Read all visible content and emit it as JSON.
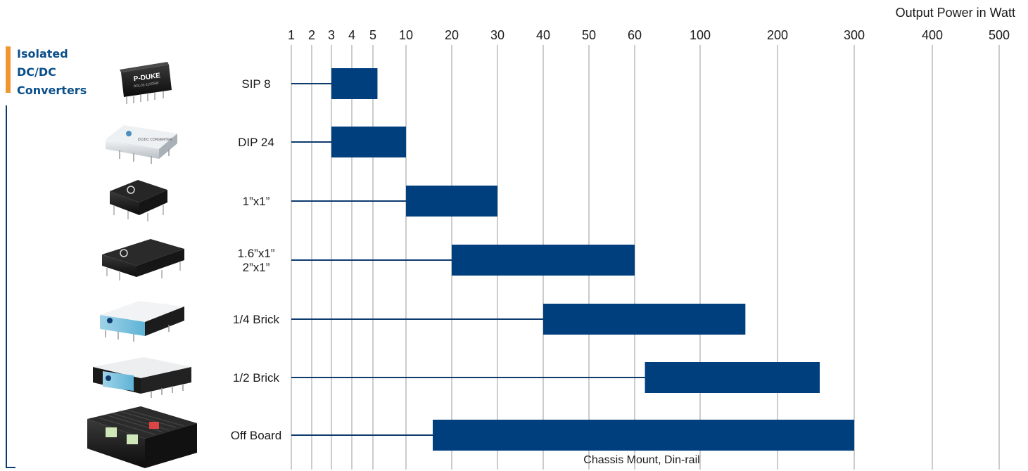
{
  "section": {
    "title_lines": [
      "Isolated",
      "DC/DC",
      "Converters"
    ]
  },
  "colors": {
    "bar": "#003f7d",
    "leader": "#0d3b6e",
    "accent": "#f0962e",
    "grid": "#9a9a9a",
    "title": "#0b4f8a"
  },
  "chart_data": {
    "type": "bar",
    "orientation": "horizontal-range",
    "x_unit_label": "Output Power in Watt",
    "x_scale": "log",
    "x_ticks": [
      1,
      2,
      3,
      4,
      5,
      10,
      20,
      30,
      40,
      50,
      60,
      100,
      200,
      300,
      400,
      500
    ],
    "grid": true,
    "categories": [
      "SIP 8",
      "DIP 24",
      "1”x1”",
      "1.6”x1”\n2”x1”",
      "1/4 Brick",
      "1/2 Brick",
      "Off Board"
    ],
    "ranges": [
      {
        "category": "SIP 8",
        "min": 3,
        "max": 5.5
      },
      {
        "category": "DIP 24",
        "min": 3,
        "max": 10
      },
      {
        "category": "1”x1”",
        "min": 10,
        "max": 30
      },
      {
        "category": "1.6”x1” 2”x1”",
        "min": 20,
        "max": 60
      },
      {
        "category": "1/4 Brick",
        "min": 40,
        "max": 150
      },
      {
        "category": "1/2 Brick",
        "min": 65,
        "max": 250
      },
      {
        "category": "Off Board",
        "min": 15,
        "max": 300
      }
    ],
    "annotations": [
      {
        "text": "Chassis Mount, Din-rail",
        "attached_to": "Off Board"
      }
    ],
    "product_images": [
      "sip8-module",
      "dip24-module",
      "1x1-module",
      "1.6x1-module",
      "quarter-brick-module",
      "half-brick-module",
      "chassis-mount-module"
    ]
  }
}
